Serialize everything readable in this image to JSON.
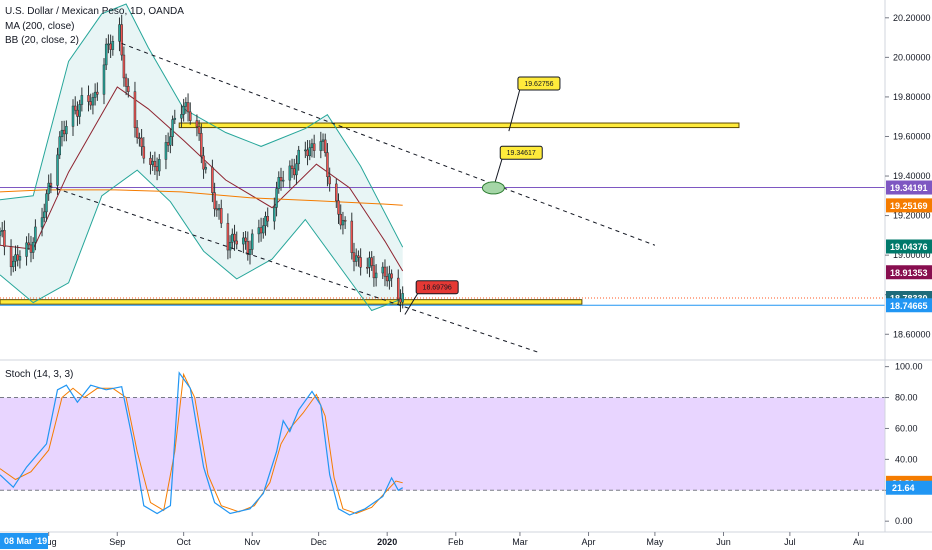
{
  "chart_data": {
    "type": "candlestick",
    "legend": {
      "title": "U.S. Dollar / Mexican Peso, 1D, OANDA",
      "ma": "MA (200, close)",
      "bb": "BB (20, close, 2)",
      "stoch": "Stoch (14, 3, 3)"
    },
    "price_axis": {
      "ylim": [
        18.48,
        20.29
      ],
      "ticks": [
        {
          "value": 20.2,
          "label": "20.20000"
        },
        {
          "value": 20.0,
          "label": "20.00000"
        },
        {
          "value": 19.8,
          "label": "19.80000"
        },
        {
          "value": 19.6,
          "label": "19.60000"
        },
        {
          "value": 19.4,
          "label": "19.40000"
        },
        {
          "value": 19.2,
          "label": "19.20000"
        },
        {
          "value": 19.0,
          "label": "19.00000"
        },
        {
          "value": 18.8,
          "label": "18.80000"
        },
        {
          "value": 18.6,
          "label": "18.60000"
        }
      ],
      "tags": [
        {
          "value": 19.34191,
          "label": "19.34191",
          "color": "#7e57c2"
        },
        {
          "value": 19.25169,
          "label": "19.25169",
          "color": "#f57c00"
        },
        {
          "value": 19.04376,
          "label": "19.04376",
          "color": "#00796b"
        },
        {
          "value": 18.91353,
          "label": "18.91353",
          "color": "#880e4f"
        },
        {
          "value": 18.7833,
          "label": "18.78330",
          "color": "#1e6b7a"
        },
        {
          "value": 18.74665,
          "label": "18.74665",
          "color": "#2196f3"
        }
      ]
    },
    "stoch_axis": {
      "ylim": [
        -7,
        103
      ],
      "ticks": [
        {
          "value": 100,
          "label": "100.00"
        },
        {
          "value": 80,
          "label": "80.00"
        },
        {
          "value": 60,
          "label": "60.00"
        },
        {
          "value": 40,
          "label": "40.00"
        },
        {
          "value": 20,
          "label": "20.00"
        },
        {
          "value": 0,
          "label": "0.00"
        }
      ],
      "band": [
        20,
        80
      ],
      "tags": [
        {
          "value": 24.81,
          "label": "24.81",
          "color": "#f57c00"
        },
        {
          "value": 21.64,
          "label": "21.64",
          "color": "#2196f3"
        }
      ]
    },
    "time_axis": {
      "range": [
        "2019-07-10",
        "2020-08-13"
      ],
      "cursor_label": "08 Mar '19",
      "ticks": [
        {
          "date": "2019-08-01",
          "label": "Aug"
        },
        {
          "date": "2019-09-01",
          "label": "Sep"
        },
        {
          "date": "2019-10-01",
          "label": "Oct"
        },
        {
          "date": "2019-11-01",
          "label": "Nov"
        },
        {
          "date": "2019-12-01",
          "label": "Dec"
        },
        {
          "date": "2020-01-01",
          "label": "2020"
        },
        {
          "date": "2020-02-01",
          "label": "Feb"
        },
        {
          "date": "2020-03-01",
          "label": "Mar"
        },
        {
          "date": "2020-04-01",
          "label": "Apr"
        },
        {
          "date": "2020-05-01",
          "label": "May"
        },
        {
          "date": "2020-06-01",
          "label": "Jun"
        },
        {
          "date": "2020-07-01",
          "label": "Jul"
        },
        {
          "date": "2020-08-01",
          "label": "Au"
        }
      ]
    },
    "close_path": [
      [
        "2019-07-10",
        19.1
      ],
      [
        "2019-07-16",
        18.97
      ],
      [
        "2019-07-22",
        19.02
      ],
      [
        "2019-07-29",
        19.18
      ],
      [
        "2019-08-05",
        19.55
      ],
      [
        "2019-08-13",
        19.75
      ],
      [
        "2019-08-21",
        19.78
      ],
      [
        "2019-08-27",
        20.02
      ],
      [
        "2019-09-02",
        20.15
      ],
      [
        "2019-09-05",
        19.82
      ],
      [
        "2019-09-11",
        19.58
      ],
      [
        "2019-09-17",
        19.42
      ],
      [
        "2019-09-24",
        19.58
      ],
      [
        "2019-10-01",
        19.78
      ],
      [
        "2019-10-07",
        19.62
      ],
      [
        "2019-10-15",
        19.25
      ],
      [
        "2019-10-21",
        19.08
      ],
      [
        "2019-10-30",
        19.05
      ],
      [
        "2019-11-06",
        19.14
      ],
      [
        "2019-11-14",
        19.38
      ],
      [
        "2019-11-22",
        19.48
      ],
      [
        "2019-12-02",
        19.6
      ],
      [
        "2019-12-05",
        19.42
      ],
      [
        "2019-12-10",
        19.22
      ],
      [
        "2019-12-16",
        19.02
      ],
      [
        "2019-12-22",
        18.94
      ],
      [
        "2019-12-30",
        18.92
      ],
      [
        "2020-01-03",
        18.85
      ],
      [
        "2020-01-08",
        18.79
      ]
    ],
    "ma200": [
      [
        "2019-07-10",
        19.32
      ],
      [
        "2019-07-30",
        19.33
      ],
      [
        "2019-08-31",
        19.33
      ],
      [
        "2019-09-30",
        19.32
      ],
      [
        "2019-10-31",
        19.29
      ],
      [
        "2019-11-30",
        19.275
      ],
      [
        "2019-12-31",
        19.258
      ],
      [
        "2020-01-08",
        19.252
      ]
    ],
    "bb_basis": [
      [
        "2019-07-10",
        19.05
      ],
      [
        "2019-07-25",
        19.03
      ],
      [
        "2019-08-10",
        19.42
      ],
      [
        "2019-09-01",
        19.85
      ],
      [
        "2019-09-15",
        19.74
      ],
      [
        "2019-10-01",
        19.58
      ],
      [
        "2019-10-20",
        19.38
      ],
      [
        "2019-11-10",
        19.24
      ],
      [
        "2019-11-30",
        19.46
      ],
      [
        "2019-12-15",
        19.34
      ],
      [
        "2019-12-31",
        19.07
      ],
      [
        "2020-01-08",
        18.92
      ]
    ],
    "bb_upper": [
      [
        "2019-07-10",
        19.28
      ],
      [
        "2019-07-25",
        19.3
      ],
      [
        "2019-08-10",
        19.98
      ],
      [
        "2019-08-25",
        20.22
      ],
      [
        "2019-09-05",
        20.27
      ],
      [
        "2019-09-15",
        20.05
      ],
      [
        "2019-10-01",
        19.74
      ],
      [
        "2019-10-20",
        19.62
      ],
      [
        "2019-11-05",
        19.55
      ],
      [
        "2019-11-25",
        19.64
      ],
      [
        "2019-12-05",
        19.71
      ],
      [
        "2019-12-20",
        19.45
      ],
      [
        "2020-01-08",
        19.04
      ]
    ],
    "bb_lower": [
      [
        "2019-07-10",
        18.9
      ],
      [
        "2019-07-25",
        18.76
      ],
      [
        "2019-08-10",
        18.86
      ],
      [
        "2019-08-25",
        19.3
      ],
      [
        "2019-09-10",
        19.43
      ],
      [
        "2019-09-25",
        19.27
      ],
      [
        "2019-10-10",
        19.02
      ],
      [
        "2019-10-25",
        18.88
      ],
      [
        "2019-11-10",
        18.98
      ],
      [
        "2019-11-25",
        19.18
      ],
      [
        "2019-12-10",
        18.95
      ],
      [
        "2019-12-25",
        18.72
      ],
      [
        "2020-01-08",
        18.78
      ]
    ],
    "stoch_k": [
      [
        "2019-07-10",
        30
      ],
      [
        "2019-07-16",
        22
      ],
      [
        "2019-07-22",
        35
      ],
      [
        "2019-07-31",
        50
      ],
      [
        "2019-08-05",
        85
      ],
      [
        "2019-08-09",
        88
      ],
      [
        "2019-08-14",
        77
      ],
      [
        "2019-08-20",
        88
      ],
      [
        "2019-08-27",
        85
      ],
      [
        "2019-09-03",
        87
      ],
      [
        "2019-09-08",
        52
      ],
      [
        "2019-09-13",
        10
      ],
      [
        "2019-09-19",
        5
      ],
      [
        "2019-09-25",
        10
      ],
      [
        "2019-09-29",
        96
      ],
      [
        "2019-10-04",
        86
      ],
      [
        "2019-10-10",
        35
      ],
      [
        "2019-10-15",
        12
      ],
      [
        "2019-10-22",
        5
      ],
      [
        "2019-10-31",
        8
      ],
      [
        "2019-11-06",
        18
      ],
      [
        "2019-11-12",
        45
      ],
      [
        "2019-11-15",
        65
      ],
      [
        "2019-11-18",
        58
      ],
      [
        "2019-11-22",
        72
      ],
      [
        "2019-11-28",
        84
      ],
      [
        "2019-12-02",
        75
      ],
      [
        "2019-12-06",
        30
      ],
      [
        "2019-12-10",
        8
      ],
      [
        "2019-12-15",
        4
      ],
      [
        "2019-12-22",
        8
      ],
      [
        "2019-12-30",
        16
      ],
      [
        "2020-01-03",
        28
      ],
      [
        "2020-01-06",
        20
      ],
      [
        "2020-01-08",
        21.64
      ]
    ],
    "stoch_d": [
      [
        "2019-07-10",
        34
      ],
      [
        "2019-07-17",
        27
      ],
      [
        "2019-07-24",
        32
      ],
      [
        "2019-08-01",
        46
      ],
      [
        "2019-08-07",
        80
      ],
      [
        "2019-08-12",
        86
      ],
      [
        "2019-08-17",
        80
      ],
      [
        "2019-08-23",
        86
      ],
      [
        "2019-08-30",
        86
      ],
      [
        "2019-09-05",
        80
      ],
      [
        "2019-09-10",
        45
      ],
      [
        "2019-09-16",
        12
      ],
      [
        "2019-09-22",
        7
      ],
      [
        "2019-09-27",
        45
      ],
      [
        "2019-10-01",
        95
      ],
      [
        "2019-10-06",
        80
      ],
      [
        "2019-10-12",
        30
      ],
      [
        "2019-10-18",
        10
      ],
      [
        "2019-10-26",
        6
      ],
      [
        "2019-11-02",
        10
      ],
      [
        "2019-11-09",
        25
      ],
      [
        "2019-11-14",
        50
      ],
      [
        "2019-11-18",
        60
      ],
      [
        "2019-11-24",
        70
      ],
      [
        "2019-11-30",
        82
      ],
      [
        "2019-12-04",
        68
      ],
      [
        "2019-12-08",
        28
      ],
      [
        "2019-12-12",
        8
      ],
      [
        "2019-12-18",
        5
      ],
      [
        "2019-12-25",
        9
      ],
      [
        "2020-01-01",
        20
      ],
      [
        "2020-01-05",
        26
      ],
      [
        "2020-01-08",
        24.81
      ]
    ],
    "drawings": {
      "horizontal_lines": [
        {
          "name": "purple-line",
          "value": 19.34191,
          "color": "#7e57c2"
        },
        {
          "name": "blue-support-line",
          "value": 18.74665,
          "color": "#2196f3"
        },
        {
          "name": "red-dotted-line",
          "value": 18.7833,
          "color": "#ff5722"
        }
      ],
      "zones": [
        {
          "name": "resistance-zone",
          "from": "2019-09-29",
          "to": "2020-06-08",
          "top": 19.668,
          "bottom": 19.645,
          "color": "#ffeb3b"
        },
        {
          "name": "support-zone",
          "from": "2019-07-10",
          "to": "2020-03-29",
          "top": 18.775,
          "bottom": 18.752,
          "color": "#ffeb3b"
        }
      ],
      "trend_lines": [
        {
          "name": "upper-trend-line",
          "from": [
            "2019-09-03",
            20.07
          ],
          "to": [
            "2020-05-01",
            19.05
          ]
        },
        {
          "name": "lower-trend-line",
          "from": [
            "2019-08-01",
            19.35
          ],
          "to": [
            "2020-03-09",
            18.51
          ]
        }
      ],
      "callouts": [
        {
          "name": "callout-19-62756",
          "text": "19.62756",
          "color": "#ffeb3b",
          "point": [
            "2020-02-25",
            19.627
          ],
          "box_at": [
            "2020-03-01",
            19.84
          ]
        },
        {
          "name": "callout-19-34617",
          "text": "19.34617",
          "color": "#ffeb3b",
          "point": [
            "2020-02-18",
            19.34
          ],
          "box_at": [
            "2020-02-22",
            19.49
          ]
        },
        {
          "name": "callout-18-69796",
          "text": "18.69796",
          "color": "#e53935",
          "point": [
            "2020-01-09",
            18.7
          ],
          "box_at": [
            "2020-01-15",
            18.81
          ]
        }
      ]
    }
  }
}
